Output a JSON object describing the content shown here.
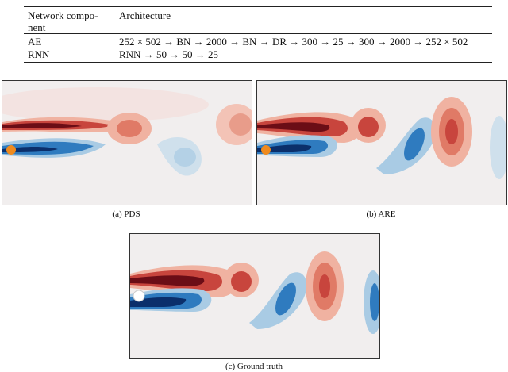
{
  "table": {
    "headers": {
      "component": "Network compo- nent",
      "architecture": "Architecture"
    },
    "rows": [
      {
        "component": "AE",
        "architecture": "252 × 502 → BN → 2000 → BN → DR → 300 → 25 → 300 → 2000 → 252 × 502"
      },
      {
        "component": "RNN",
        "architecture": "RNN → 50 → 50 → 25"
      }
    ]
  },
  "figures": [
    {
      "caption": "(a) PDS"
    },
    {
      "caption": "(b) ARE"
    },
    {
      "caption": "(c) Ground truth"
    }
  ],
  "colors": {
    "red_dark": "#6b0d16",
    "red": "#c8453d",
    "red_light": "#f0b2a1",
    "blue_dark": "#0b2f6b",
    "blue": "#2f7bbf",
    "blue_light": "#a9cbe4",
    "background": "#f1eeee",
    "cylinder": "#ef8a1e"
  }
}
